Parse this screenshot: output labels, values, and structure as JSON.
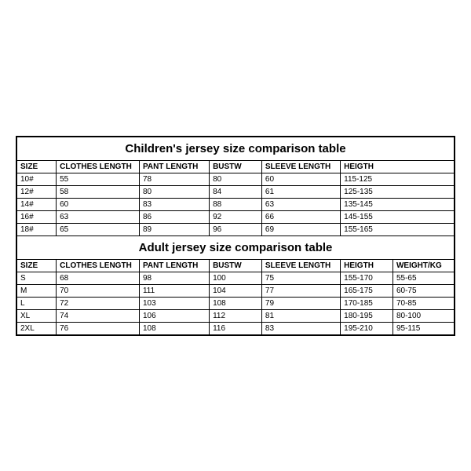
{
  "border_color": "#000000",
  "background_color": "#ffffff",
  "font_family": "Arial",
  "title_fontsize": 15,
  "cell_fontsize": 10,
  "children": {
    "title": "Children's jersey size comparison table",
    "columns": [
      "SIZE",
      "CLOTHES LENGTH",
      "PANT LENGTH",
      "BUSTW",
      "SLEEVE LENGTH",
      "HEIGTH"
    ],
    "rows": [
      [
        "10#",
        "55",
        "78",
        "80",
        "60",
        "115-125"
      ],
      [
        "12#",
        "58",
        "80",
        "84",
        "61",
        "125-135"
      ],
      [
        "14#",
        "60",
        "83",
        "88",
        "63",
        "135-145"
      ],
      [
        "16#",
        "63",
        "86",
        "92",
        "66",
        "145-155"
      ],
      [
        "18#",
        "65",
        "89",
        "96",
        "69",
        "155-165"
      ]
    ]
  },
  "adult": {
    "title": "Adult jersey size comparison table",
    "columns": [
      "SIZE",
      "CLOTHES LENGTH",
      "PANT LENGTH",
      "BUSTW",
      "SLEEVE LENGTH",
      "HEIGTH",
      "WEIGHT/KG"
    ],
    "rows": [
      [
        "S",
        "68",
        "98",
        "100",
        "75",
        "155-170",
        "55-65"
      ],
      [
        "M",
        "70",
        "111",
        "104",
        "77",
        "165-175",
        "60-75"
      ],
      [
        "L",
        "72",
        "103",
        "108",
        "79",
        "170-185",
        "70-85"
      ],
      [
        "XL",
        "74",
        "106",
        "112",
        "81",
        "180-195",
        "80-100"
      ],
      [
        "2XL",
        "76",
        "108",
        "116",
        "83",
        "195-210",
        "95-115"
      ]
    ]
  }
}
